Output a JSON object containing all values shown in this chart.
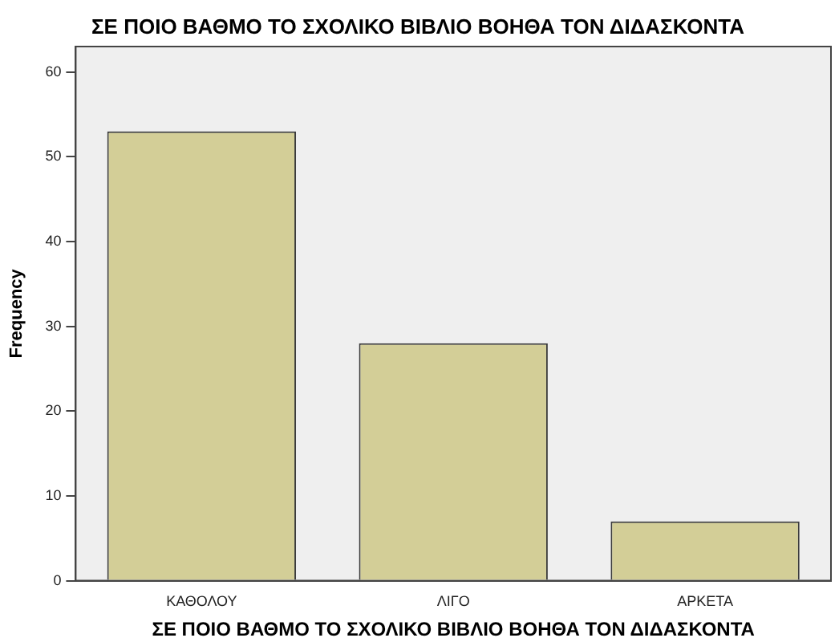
{
  "chart_data": {
    "type": "bar",
    "title": "ΣΕ ΠΟΙΟ ΒΑΘΜΟ ΤΟ ΣΧΟΛΙΚΟ ΒΙΒΛΙΟ ΒΟΗΘΑ ΤΟΝ ΔΙΔΑΣΚΟΝΤΑ",
    "xlabel": "ΣΕ ΠΟΙΟ ΒΑΘΜΟ ΤΟ ΣΧΟΛΙΚΟ ΒΙΒΛΙΟ ΒΟΗΘΑ ΤΟΝ ΔΙΔΑΣΚΟΝΤΑ",
    "ylabel": "Frequency",
    "categories": [
      "ΚΑΘΟΛΟΥ",
      "ΛΙΓΟ",
      "ΑΡΚΕΤΑ"
    ],
    "values": [
      53,
      28,
      7
    ],
    "color": "#d3ce97",
    "ylim": [
      0,
      63
    ],
    "yticks": [
      0,
      10,
      20,
      30,
      40,
      50,
      60
    ],
    "grid": false,
    "legend": false
  }
}
